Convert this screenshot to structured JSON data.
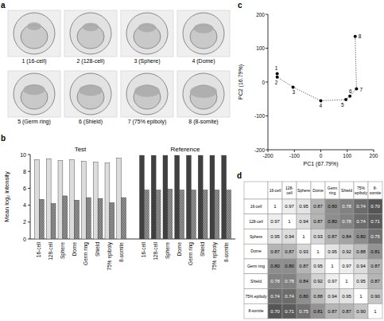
{
  "image_panel": {
    "panel_label": "a",
    "labels": [
      "1 (16-cell)",
      "2 (128-cell)",
      "3 (Sphere)",
      "4 (Dome)",
      "5 (Germ ring)",
      "6 (Shield)",
      "7 (75% epiboly)",
      "8 (8-somite)"
    ]
  },
  "chart_data": [
    {
      "type": "bar",
      "panel_label": "b",
      "y_label": "Mean log₂ intensity",
      "categories": [
        "16-cell",
        "128-cell",
        "Sphere",
        "Dome",
        "Germ ring",
        "Shield",
        "75% epiboly",
        "8-somite"
      ],
      "groups": [
        {
          "title": "Test",
          "series": [
            {
              "color": "#dcdcdc",
              "values": [
                9.4,
                9.5,
                9.3,
                9.4,
                9.2,
                9.1,
                9.0,
                9.6
              ]
            },
            {
              "color": "#4a4a4a",
              "values": [
                4.7,
                4.2,
                5.1,
                4.6,
                4.9,
                4.8,
                4.3,
                4.9
              ]
            }
          ]
        },
        {
          "title": "Reference",
          "series": [
            {
              "color": "#404040",
              "values": [
                9.9,
                9.9,
                9.9,
                9.9,
                9.9,
                9.9,
                9.9,
                9.9
              ]
            },
            {
              "color": "#4a4a4a",
              "values": [
                5.8,
                5.8,
                5.9,
                5.8,
                5.8,
                5.8,
                5.8,
                5.8
              ]
            }
          ]
        }
      ],
      "ylim": [
        0,
        10
      ],
      "yticks": [
        0,
        2,
        4,
        6,
        8,
        10
      ]
    },
    {
      "type": "scatter",
      "panel_label": "c",
      "x_label": "PC1 (67.79%)",
      "y_label": "PC2 (16.79%)",
      "x": [
        -165,
        -165,
        -105,
        0,
        95,
        110,
        135,
        130
      ],
      "values": [
        25,
        15,
        -15,
        -55,
        -52,
        -42,
        -20,
        135
      ],
      "point_labels": [
        "1",
        "2",
        "3",
        "4",
        "5",
        "6",
        "7",
        "8"
      ],
      "xlim": [
        -200,
        200
      ],
      "ylim": [
        -200,
        200
      ],
      "xticks": [
        -200,
        -100,
        0,
        100,
        200
      ],
      "yticks": [
        -200,
        -100,
        0,
        100,
        200
      ],
      "color": "#000000",
      "marker": "circle",
      "line_style": "dotted"
    },
    {
      "type": "heatmap",
      "panel_label": "d",
      "categories": [
        "16-cell",
        "128-cell",
        "Sphere",
        "Dome",
        "Germ ring",
        "Shield",
        "75% epiboly",
        "8-somite"
      ],
      "values": [
        [
          1,
          0.97,
          0.95,
          0.87,
          0.8,
          0.78,
          0.74,
          0.7
        ],
        [
          0.97,
          1,
          0.94,
          0.87,
          0.8,
          0.78,
          0.74,
          0.71
        ],
        [
          0.95,
          0.94,
          1,
          0.93,
          0.87,
          0.84,
          0.8,
          0.75
        ],
        [
          0.87,
          0.87,
          0.93,
          1,
          0.95,
          0.92,
          0.88,
          0.81
        ],
        [
          0.8,
          0.8,
          0.87,
          0.95,
          1,
          0.97,
          0.94,
          0.87
        ],
        [
          0.78,
          0.78,
          0.84,
          0.92,
          0.97,
          1,
          0.95,
          0.87
        ],
        [
          0.74,
          0.74,
          0.8,
          0.88,
          0.94,
          0.95,
          1,
          0.9
        ],
        [
          0.7,
          0.71,
          0.75,
          0.81,
          0.87,
          0.87,
          0.9,
          1
        ]
      ],
      "value_labels": [
        [
          "1",
          "0.97",
          "0.95",
          "0.87",
          "0.80",
          "0.78",
          "0.74",
          "0.70"
        ],
        [
          "0.97",
          "1",
          "0.94",
          "0.87",
          "0.80",
          "0.78",
          "0.74",
          "0.71"
        ],
        [
          "0.95",
          "0.94",
          "1",
          "0.93",
          "0.87",
          "0.84",
          "0.80",
          "0.75"
        ],
        [
          "0.87",
          "0.87",
          "0.93",
          "1",
          "0.95",
          "0.92",
          "0.88",
          "0.81"
        ],
        [
          "0.80",
          "0.80",
          "0.87",
          "0.95",
          "1",
          "0.97",
          "0.94",
          "0.87"
        ],
        [
          "0.78",
          "0.78",
          "0.84",
          "0.92",
          "0.97",
          "1",
          "0.95",
          "0.87"
        ],
        [
          "0.74",
          "0.74",
          "0.80",
          "0.88",
          "0.94",
          "0.95",
          "1",
          "0.90"
        ],
        [
          "0.70",
          "0.71",
          "0.75",
          "0.81",
          "0.87",
          "0.87",
          "0.90",
          "1"
        ]
      ]
    }
  ]
}
